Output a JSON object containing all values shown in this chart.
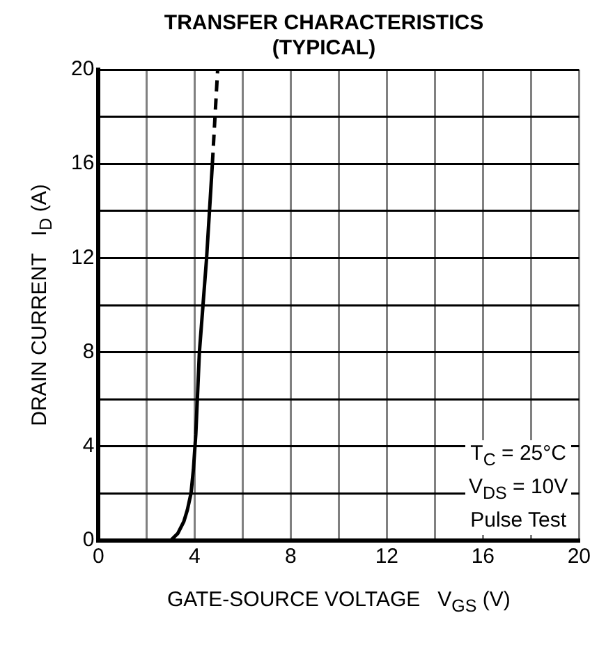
{
  "chart_data": {
    "type": "line",
    "title": "TRANSFER CHARACTERISTICS",
    "subtitle": "(TYPICAL)",
    "xlabel": "GATE-SOURCE VOLTAGE   V$_{GS}$ (V)",
    "ylabel": "DRAIN CURRENT   I$_{D}$ (A)",
    "xlim": [
      0,
      20
    ],
    "ylim": [
      0,
      20
    ],
    "xticks": [
      0,
      {
        "value": 2,
        "label": null
      },
      4,
      {
        "value": 6,
        "label": null
      },
      8,
      {
        "value": 10,
        "label": null
      },
      12,
      {
        "value": 14,
        "label": null
      },
      16,
      {
        "value": 18,
        "label": null
      },
      20
    ],
    "yticks": [
      0,
      {
        "value": 2,
        "label": null
      },
      4,
      {
        "value": 6,
        "label": null
      },
      8,
      {
        "value": 10,
        "label": null
      },
      12,
      {
        "value": 14,
        "label": null
      },
      16,
      {
        "value": 18,
        "label": null
      },
      20
    ],
    "grid": true,
    "marker": "none",
    "legend": false,
    "series": [
      {
        "color": "#000000",
        "line_style": "solid",
        "x": [
          3.0,
          3.3,
          3.55,
          3.7,
          3.85,
          3.95,
          4.05,
          4.2,
          4.35,
          4.5,
          4.62,
          4.74
        ],
        "values": [
          0,
          0.3,
          0.8,
          1.3,
          2,
          3,
          4.5,
          8,
          10,
          12,
          14,
          16
        ]
      },
      {
        "color": "#000000",
        "line_style": "dashed",
        "x": [
          4.74,
          4.85,
          4.96
        ],
        "values": [
          16,
          18,
          20
        ]
      }
    ],
    "annotations": [
      "T$_{C}$ = 25°C",
      "V$_{DS}$ = 10V",
      "Pulse Test"
    ]
  }
}
